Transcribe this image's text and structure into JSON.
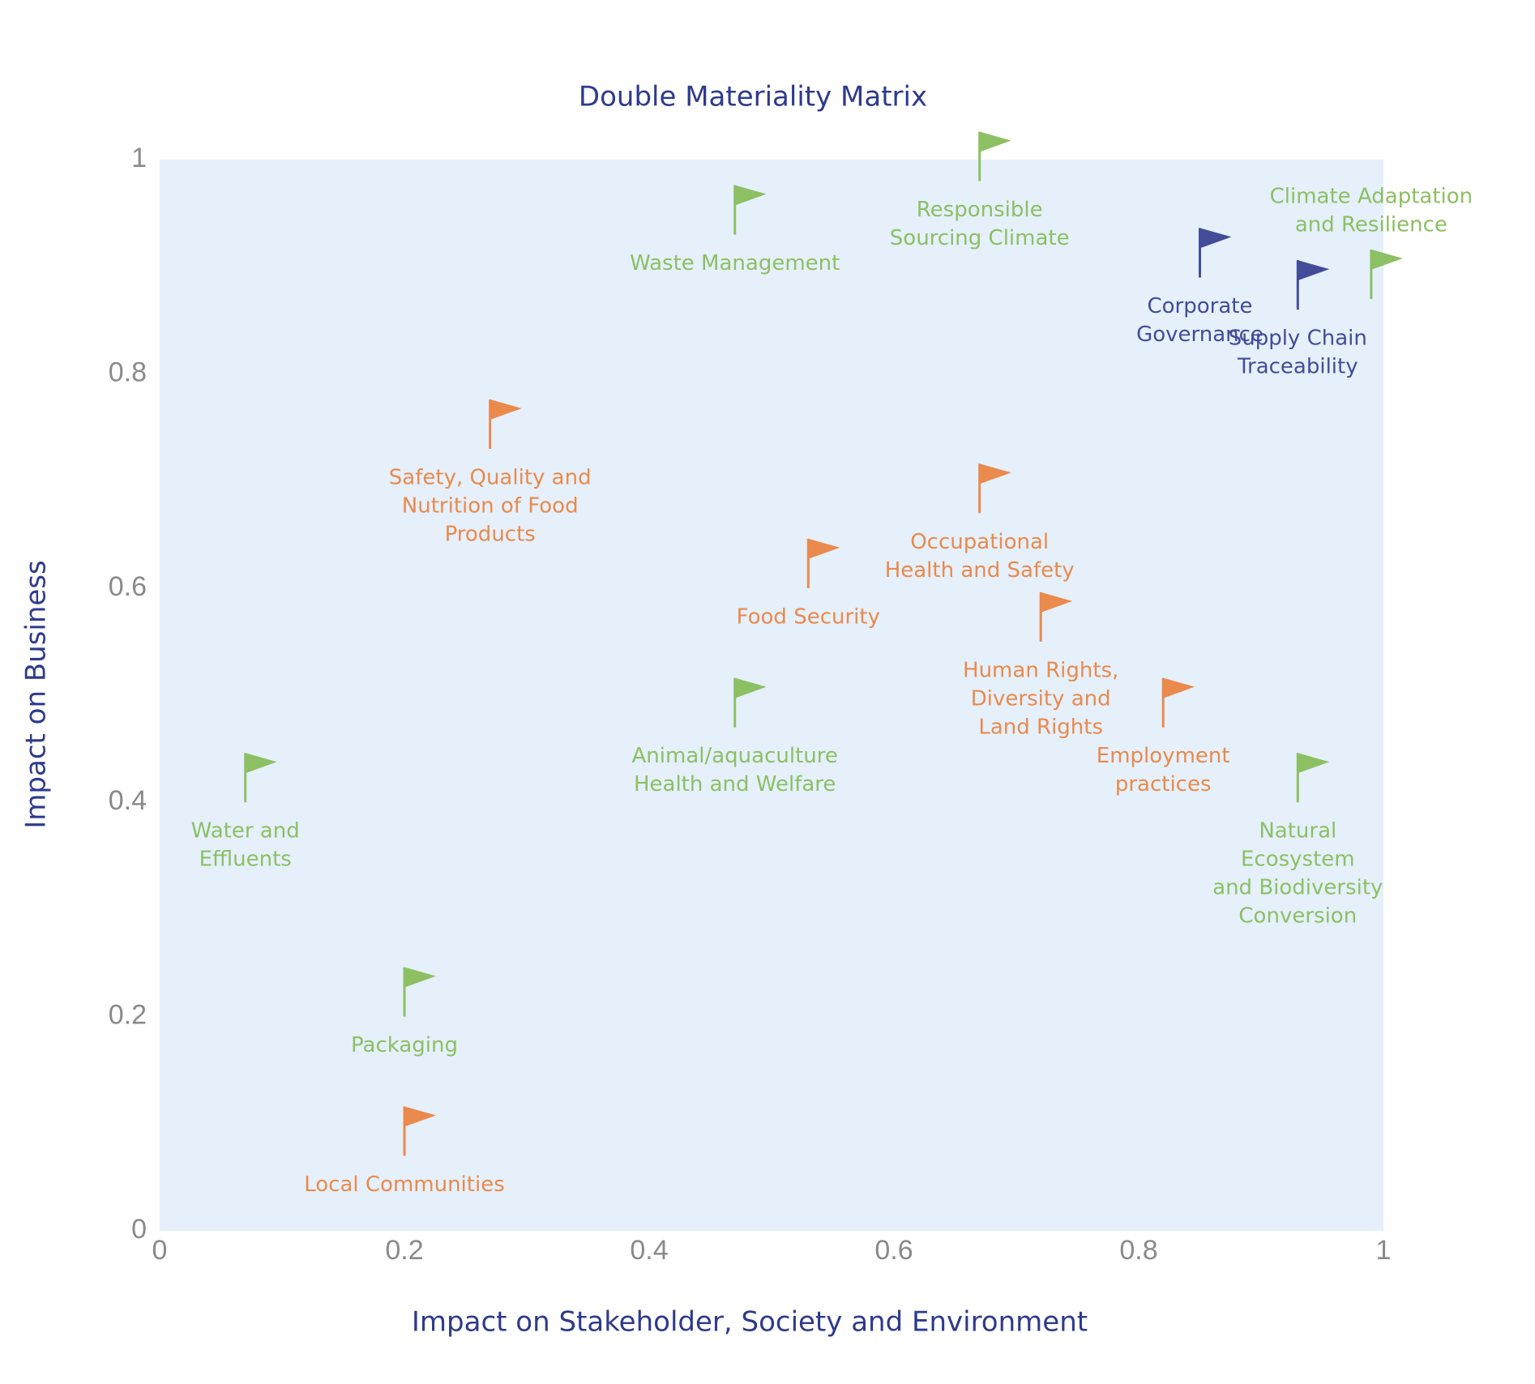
{
  "chart_data": {
    "type": "scatter",
    "title": "Double Materiality Matrix",
    "x_label": "Impact on Stakeholder, Society and Environment",
    "y_label": "Impact on Business",
    "xlim": [
      0,
      1
    ],
    "ylim": [
      0,
      1
    ],
    "xticks": [
      0,
      0.2,
      0.4,
      0.6,
      0.8,
      1
    ],
    "yticks": [
      0,
      0.2,
      0.4,
      0.6,
      0.8,
      1
    ],
    "background": "#e5f0fb",
    "marker": "flag",
    "points": [
      {
        "label": [
          "Responsible",
          "Sourcing Climate"
        ],
        "x": 0.67,
        "y": 0.98,
        "color": "#8cc063"
      },
      {
        "label": [
          "Waste Management"
        ],
        "x": 0.47,
        "y": 0.93,
        "color": "#8cc063"
      },
      {
        "label": [
          "Corporate",
          "Governance"
        ],
        "x": 0.85,
        "y": 0.89,
        "color": "#434c99"
      },
      {
        "label": [
          "Supply Chain",
          "Traceability"
        ],
        "x": 0.93,
        "y": 0.86,
        "color": "#434c99"
      },
      {
        "label": [
          "Climate Adaptation",
          "and Resilience"
        ],
        "x": 0.99,
        "y": 0.87,
        "color": "#8cc063"
      },
      {
        "label": [
          "Safety, Quality and",
          "Nutrition of Food",
          "Products"
        ],
        "x": 0.27,
        "y": 0.73,
        "color": "#ea8a4c"
      },
      {
        "label": [
          "Occupational",
          "Health and Safety"
        ],
        "x": 0.67,
        "y": 0.67,
        "color": "#ea8a4c"
      },
      {
        "label": [
          "Food Security"
        ],
        "x": 0.53,
        "y": 0.6,
        "color": "#ea8a4c"
      },
      {
        "label": [
          "Human Rights,",
          "Diversity and",
          "Land Rights"
        ],
        "x": 0.72,
        "y": 0.55,
        "color": "#ea8a4c"
      },
      {
        "label": [
          "Employment",
          "practices"
        ],
        "x": 0.82,
        "y": 0.47,
        "color": "#ea8a4c"
      },
      {
        "label": [
          "Animal/aquaculture",
          "Health and Welfare"
        ],
        "x": 0.47,
        "y": 0.47,
        "color": "#8cc063"
      },
      {
        "label": [
          "Natural",
          "Ecosystem",
          "and Biodiversity",
          "Conversion"
        ],
        "x": 0.93,
        "y": 0.4,
        "color": "#8cc063"
      },
      {
        "label": [
          "Water and",
          "Effluents"
        ],
        "x": 0.07,
        "y": 0.4,
        "color": "#8cc063"
      },
      {
        "label": [
          "Packaging"
        ],
        "x": 0.2,
        "y": 0.2,
        "color": "#8cc063"
      },
      {
        "label": [
          "Local Communities"
        ],
        "x": 0.2,
        "y": 0.07,
        "color": "#ea8a4c"
      }
    ]
  }
}
